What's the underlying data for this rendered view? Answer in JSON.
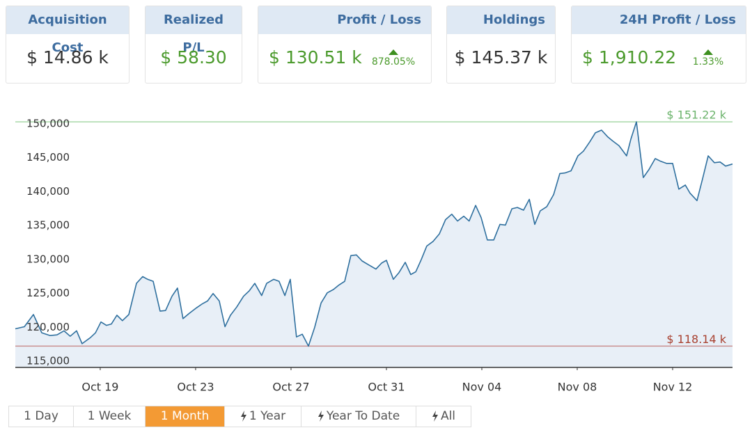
{
  "cards": [
    {
      "title": "Acquisition Cost",
      "value": "$ 14.86 k"
    },
    {
      "title": "Realized P/L",
      "value": "$ 58.30"
    },
    {
      "title": "Profit / Loss",
      "value": "$ 130.51 k",
      "change": "878.05%"
    },
    {
      "title": "Holdings",
      "value": "$ 145.37 k"
    },
    {
      "title": "24H Profit / Loss",
      "value": "$ 1,910.22",
      "change": "1.33%"
    }
  ],
  "chart_data": {
    "type": "line",
    "x": [
      15.44,
      15.82,
      16.2,
      16.55,
      16.9,
      17.19,
      17.48,
      17.74,
      18.01,
      18.24,
      18.59,
      18.8,
      19.03,
      19.26,
      19.47,
      19.7,
      19.93,
      20.2,
      20.52,
      20.78,
      20.99,
      21.22,
      21.51,
      21.74,
      22.01,
      22.24,
      22.47,
      22.74,
      23.0,
      23.29,
      23.5,
      23.73,
      23.99,
      24.23,
      24.46,
      24.72,
      25.01,
      25.25,
      25.48,
      25.77,
      25.98,
      26.27,
      26.5,
      26.74,
      26.97,
      27.23,
      27.47,
      27.73,
      27.99,
      28.26,
      28.52,
      28.78,
      28.99,
      29.25,
      29.51,
      29.74,
      29.98,
      30.27,
      30.56,
      30.8,
      31.0,
      31.29,
      31.53,
      31.79,
      32.02,
      32.23,
      32.46,
      32.69,
      32.96,
      33.22,
      33.48,
      33.74,
      33.98,
      34.24,
      34.47,
      34.74,
      34.97,
      35.23,
      35.5,
      35.76,
      35.99,
      36.26,
      36.49,
      36.75,
      36.99,
      37.22,
      37.45,
      37.72,
      38.01,
      38.27,
      38.5,
      38.74,
      39.03,
      39.26,
      39.53,
      39.76,
      40.02,
      40.28,
      40.49,
      40.75,
      41.07,
      41.25,
      41.48,
      41.77,
      42.01,
      42.27,
      42.5,
      42.74,
      43.0,
      43.26,
      43.53,
      43.73,
      44.02,
      44.26,
      44.49,
      44.75,
      44.99,
      45.22,
      45.51
    ],
    "values": [
      120700,
      121000,
      122800,
      120100,
      119700,
      119800,
      120400,
      119600,
      120400,
      118500,
      119400,
      120100,
      121700,
      121200,
      121400,
      122700,
      121900,
      122800,
      127400,
      128400,
      128000,
      127700,
      123300,
      123400,
      125500,
      126700,
      122200,
      123000,
      123700,
      124400,
      124800,
      125900,
      124800,
      121000,
      122700,
      123900,
      125500,
      126300,
      127400,
      125600,
      127400,
      128000,
      127700,
      125600,
      128000,
      119500,
      119900,
      118140,
      120900,
      124500,
      126000,
      126500,
      127100,
      127700,
      131500,
      131600,
      130700,
      130100,
      129500,
      130400,
      130800,
      128000,
      129000,
      130500,
      128700,
      129100,
      130900,
      132900,
      133600,
      134700,
      136800,
      137600,
      136600,
      137300,
      136600,
      138900,
      137100,
      133800,
      133800,
      136100,
      136000,
      138400,
      138600,
      138200,
      139800,
      136100,
      138100,
      138700,
      140500,
      143600,
      143700,
      144000,
      146200,
      146900,
      148300,
      149600,
      150000,
      149000,
      148400,
      147700,
      146200,
      148700,
      151220,
      143000,
      144200,
      145800,
      145400,
      145100,
      145100,
      141300,
      141900,
      140700,
      139600,
      142900,
      146200,
      145200,
      145300,
      144700,
      145000
    ],
    "color": "#2e6f9e",
    "fill": "#e8eff7",
    "xlim": [
      15.44,
      45.51
    ],
    "xticks": [
      {
        "value": 19,
        "label": "Oct 19"
      },
      {
        "value": 23,
        "label": "Oct 23"
      },
      {
        "value": 27,
        "label": "Oct 27"
      },
      {
        "value": 31,
        "label": "Oct 31"
      },
      {
        "value": 35,
        "label": "Nov 04"
      },
      {
        "value": 39,
        "label": "Nov 08"
      },
      {
        "value": 43,
        "label": "Nov 12"
      }
    ],
    "ylim": [
      115000,
      153800
    ],
    "yticks": [
      {
        "value": 115000,
        "label": "115,000"
      },
      {
        "value": 120000,
        "label": "120,000"
      },
      {
        "value": 125000,
        "label": "125,000"
      },
      {
        "value": 130000,
        "label": "130,000"
      },
      {
        "value": 135000,
        "label": "135,000"
      },
      {
        "value": 140000,
        "label": "140,000"
      },
      {
        "value": 145000,
        "label": "145,000"
      },
      {
        "value": 150000,
        "label": "150,000"
      }
    ],
    "max_line": {
      "value": 151220,
      "label": "$ 151.22 k",
      "color": "#a8d8a8",
      "label_color": "#6bb36b"
    },
    "min_line": {
      "value": 118140,
      "label": "$ 118.14 k",
      "color": "#c98f8f",
      "label_color": "#a8402f"
    }
  },
  "buttons": [
    "1 Day",
    "1 Week",
    "1 Month",
    "1 Year",
    "Year To Date",
    "All"
  ],
  "active_button": 2
}
